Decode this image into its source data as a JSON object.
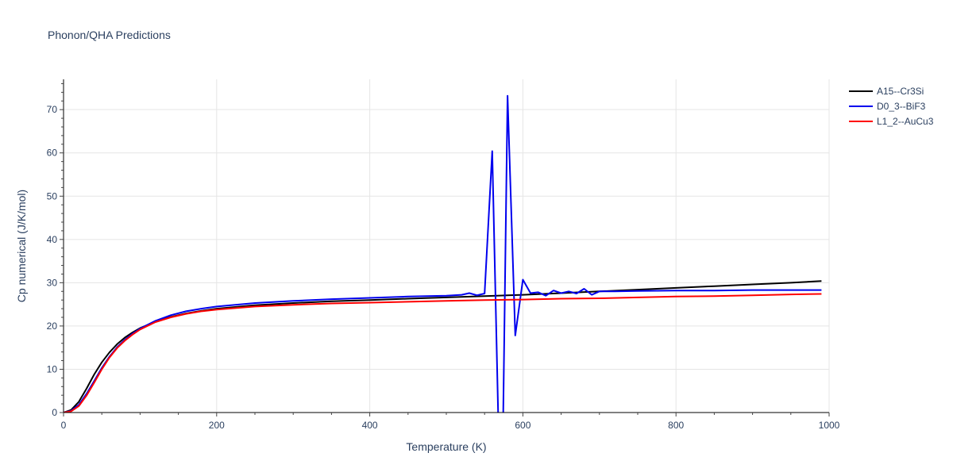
{
  "chart_data": {
    "type": "line",
    "title": "Phonon/QHA Predictions",
    "xlabel": "Temperature (K)",
    "ylabel": "Cp numerical (J/K/mol)",
    "xlim": [
      0,
      1000
    ],
    "ylim": [
      0,
      77
    ],
    "x_ticks": [
      0,
      200,
      400,
      600,
      800,
      1000
    ],
    "y_ticks": [
      0,
      10,
      20,
      30,
      40,
      50,
      60,
      70
    ],
    "grid": true,
    "legend_position": "top-right",
    "series": [
      {
        "name": "A15--Cr3Si",
        "color": "#000000",
        "x": [
          0,
          10,
          20,
          30,
          40,
          50,
          60,
          70,
          80,
          90,
          100,
          120,
          140,
          160,
          180,
          200,
          250,
          300,
          350,
          400,
          450,
          500,
          550,
          600,
          650,
          700,
          750,
          800,
          850,
          900,
          950,
          990
        ],
        "y": [
          0,
          0.6,
          2.5,
          5.5,
          8.8,
          11.6,
          13.9,
          15.8,
          17.3,
          18.5,
          19.5,
          21.0,
          22.1,
          22.9,
          23.5,
          24.0,
          24.8,
          25.3,
          25.7,
          26.0,
          26.3,
          26.6,
          26.9,
          27.2,
          27.6,
          28.0,
          28.4,
          28.8,
          29.2,
          29.6,
          30.0,
          30.4
        ]
      },
      {
        "name": "D0_3--BiF3",
        "color": "#0000ee",
        "x": [
          0,
          10,
          20,
          30,
          40,
          50,
          60,
          70,
          80,
          90,
          100,
          120,
          140,
          160,
          180,
          200,
          250,
          300,
          350,
          400,
          450,
          500,
          520,
          530,
          540,
          550,
          560,
          568,
          574,
          580,
          590,
          600,
          610,
          620,
          630,
          640,
          650,
          660,
          670,
          680,
          690,
          700,
          720,
          750,
          800,
          850,
          900,
          950,
          990
        ],
        "y": [
          0,
          0.4,
          1.8,
          4.3,
          7.3,
          10.3,
          12.9,
          15.1,
          16.8,
          18.2,
          19.4,
          21.2,
          22.5,
          23.4,
          24.0,
          24.5,
          25.3,
          25.8,
          26.2,
          26.5,
          26.8,
          27.0,
          27.2,
          27.6,
          27.1,
          27.5,
          60.4,
          -3.0,
          -5.0,
          73.2,
          17.8,
          30.7,
          27.6,
          27.8,
          27.0,
          28.2,
          27.6,
          28.0,
          27.5,
          28.6,
          27.2,
          28.0,
          28.0,
          28.1,
          28.2,
          28.2,
          28.3,
          28.3,
          28.3
        ]
      },
      {
        "name": "L1_2--AuCu3",
        "color": "#ff0000",
        "x": [
          0,
          10,
          20,
          30,
          40,
          50,
          60,
          70,
          80,
          90,
          100,
          120,
          140,
          160,
          180,
          200,
          250,
          300,
          350,
          400,
          450,
          500,
          550,
          600,
          650,
          700,
          750,
          800,
          850,
          900,
          950,
          990
        ],
        "y": [
          0,
          0.3,
          1.5,
          3.9,
          6.9,
          10.0,
          12.7,
          14.9,
          16.6,
          18.0,
          19.2,
          20.9,
          22.0,
          22.8,
          23.4,
          23.8,
          24.5,
          24.9,
          25.2,
          25.4,
          25.6,
          25.8,
          26.0,
          26.1,
          26.3,
          26.4,
          26.6,
          26.8,
          26.9,
          27.1,
          27.3,
          27.4
        ]
      }
    ]
  }
}
